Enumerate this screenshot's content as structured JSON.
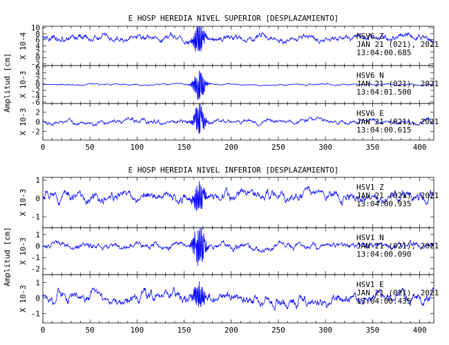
{
  "sections": [
    {
      "title": "E HOSP HEREDIA NIVEL SUPERIOR [DESPLAZAMIENTO]",
      "ylabel": "Amplitud [cm]",
      "x_ticks": [
        "0",
        "50",
        "100",
        "150",
        "200",
        "250",
        "300",
        "350",
        "400"
      ]
    },
    {
      "title": "E HOSP HEREDIA NIVEL INFERIOR [DESPLAZAMIENTO]",
      "ylabel": "Amplitud [cm]",
      "x_ticks": [
        "0",
        "50",
        "100",
        "150",
        "200",
        "250",
        "300",
        "350",
        "400"
      ]
    }
  ],
  "chart_data": [
    {
      "type": "line",
      "title": "E HOSP HEREDIA NIVEL SUPERIOR [DESPLAZAMIENTO]",
      "ylabel": "Amplitud [cm]",
      "xlim": [
        0,
        415
      ],
      "x_ticks": [
        0,
        50,
        100,
        150,
        200,
        250,
        300,
        350,
        400
      ],
      "color": "#0000ff",
      "series": [
        {
          "name": "HSV6 Z",
          "station": "HSV6",
          "component": "Z",
          "date": "JAN 21 (021), 2021",
          "time": "13:04:00.685",
          "scale": "X 10-4",
          "ylim": [
            -2.6,
            10.5
          ],
          "yticks": [
            "10",
            "8",
            "6",
            "4",
            "2",
            "0",
            "-2"
          ],
          "yticks_val": [
            10,
            8,
            6,
            4,
            2,
            0,
            -2
          ],
          "baseline": 6.5,
          "noise": 1.4,
          "event_amp": 5.5
        },
        {
          "name": "HSV6 N",
          "station": "HSV6",
          "component": "N",
          "date": "JAN 21 (021), 2021",
          "time": "13:04:01.500",
          "scale": "X 10-3",
          "ylim": [
            -6.5,
            6.5
          ],
          "yticks": [
            "6",
            "4",
            "2",
            "0",
            "-2",
            "-4",
            "-6"
          ],
          "yticks_val": [
            6,
            4,
            2,
            0,
            -2,
            -4,
            -6
          ],
          "baseline": 0,
          "noise": 0.35,
          "event_amp": 5.6
        },
        {
          "name": "HSV6 E",
          "station": "HSV6",
          "component": "E",
          "date": "JAN 21 (021), 2021",
          "time": "13:04:00.615",
          "scale": "X 10-3",
          "ylim": [
            -3.8,
            3.8
          ],
          "yticks": [
            "2",
            "0",
            "-2"
          ],
          "yticks_val": [
            2,
            0,
            -2
          ],
          "baseline": 0,
          "noise": 0.6,
          "event_amp": 3.4
        }
      ]
    },
    {
      "type": "line",
      "title": "E HOSP HEREDIA NIVEL INFERIOR [DESPLAZAMIENTO]",
      "ylabel": "Amplitud [cm]",
      "xlim": [
        0,
        415
      ],
      "x_ticks": [
        0,
        50,
        100,
        150,
        200,
        250,
        300,
        350,
        400
      ],
      "color": "#0000ff",
      "series": [
        {
          "name": "HSV1 Z",
          "station": "HSV1",
          "component": "Z",
          "date": "JAN 21 (021), 2021",
          "time": "13:04:00.935",
          "scale": "X 10-3",
          "ylim": [
            -1.6,
            1.15
          ],
          "yticks": [
            "1",
            "0",
            "-1"
          ],
          "yticks_val": [
            1,
            0,
            -1
          ],
          "baseline": 0.1,
          "noise": 0.35,
          "event_amp": 0.9
        },
        {
          "name": "HSV1 N",
          "station": "HSV1",
          "component": "N",
          "date": "JAN 21 (021), 2021",
          "time": "13:04:00.090",
          "scale": "X 10-3",
          "ylim": [
            -2.5,
            1.6
          ],
          "yticks": [
            "1",
            "0",
            "-1",
            "-2"
          ],
          "yticks_val": [
            1,
            0,
            -1,
            -2
          ],
          "baseline": 0,
          "noise": 0.35,
          "event_amp": 2.0
        },
        {
          "name": "HSV1 E",
          "station": "HSV1",
          "component": "E",
          "date": "JAN 21 (021), 2021",
          "time": "13:04:00.435",
          "scale": "X 10-3",
          "ylim": [
            -1.6,
            1.5
          ],
          "yticks": [
            "1",
            "0",
            "-1"
          ],
          "yticks_val": [
            1,
            0,
            -1
          ],
          "baseline": 0,
          "noise": 0.45,
          "event_amp": 0.9
        }
      ]
    }
  ]
}
